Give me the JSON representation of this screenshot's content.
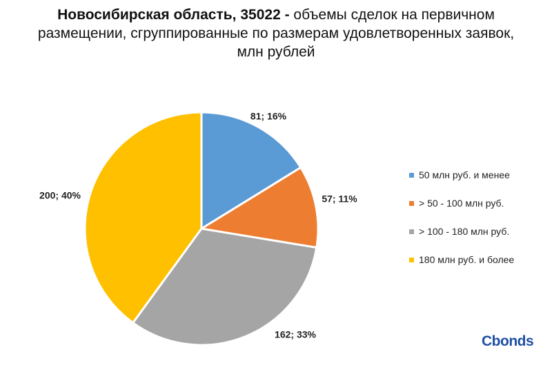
{
  "title": {
    "bold": "Новосибирская область, 35022 -",
    "rest": " объемы сделок на первичном размещении, сгруппированные по размерам удовлетворенных заявок, млн рублей"
  },
  "chart_data": {
    "type": "pie",
    "title": "Новосибирская область, 35022 - объемы сделок на первичном размещении, сгруппированные по размерам удовлетворенных заявок, млн рублей",
    "legend_position": "right",
    "slices": [
      {
        "name": "50 млн руб. и менее",
        "value": 81,
        "percent": 16,
        "label": "81; 16%",
        "color": "#5b9bd5"
      },
      {
        "name": "> 50 - 100 млн руб.",
        "value": 57,
        "percent": 11,
        "label": "57; 11%",
        "color": "#ed7d31"
      },
      {
        "name": "> 100 - 180 млн руб.",
        "value": 162,
        "percent": 33,
        "label": "162; 33%",
        "color": "#a5a5a5"
      },
      {
        "name": "180 млн руб. и более",
        "value": 200,
        "percent": 40,
        "label": "200; 40%",
        "color": "#ffc000"
      }
    ]
  },
  "branding": {
    "logo_text": "Cbonds",
    "logo_color": "#1f4fa3"
  }
}
